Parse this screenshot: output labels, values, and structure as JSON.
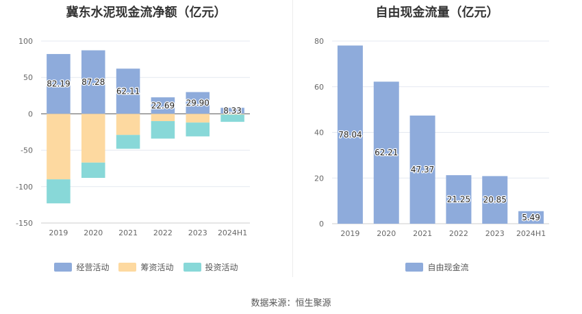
{
  "chart_data": [
    {
      "type": "bar",
      "stacked": true,
      "title": "冀东水泥现金流净额（亿元）",
      "categories": [
        "2019",
        "2020",
        "2021",
        "2022",
        "2023",
        "2024H1"
      ],
      "ylim": [
        -150,
        100
      ],
      "yticks": [
        100,
        50,
        0,
        -50,
        -100,
        -150
      ],
      "grid": true,
      "legend_position": "bottom",
      "series": [
        {
          "name": "经营活动",
          "color": "#8eabdb",
          "values": [
            82.19,
            87.28,
            62.11,
            22.69,
            29.9,
            8.33
          ],
          "labels": [
            "82.19",
            "87.28",
            "62.11",
            "22.69",
            "29.90",
            "8.33"
          ]
        },
        {
          "name": "筹资活动",
          "color": "#fdd9a0",
          "values": [
            -90,
            -67,
            -29,
            -10,
            -12,
            -1
          ]
        },
        {
          "name": "投资活动",
          "color": "#88d8d8",
          "values": [
            -33,
            -21,
            -19,
            -24,
            -19,
            -10
          ]
        }
      ]
    },
    {
      "type": "bar",
      "title": "自由现金流量（亿元）",
      "categories": [
        "2019",
        "2020",
        "2021",
        "2022",
        "2023",
        "2024H1"
      ],
      "ylim": [
        0,
        80
      ],
      "yticks": [
        80,
        60,
        40,
        20,
        0
      ],
      "grid": true,
      "legend_position": "bottom",
      "series": [
        {
          "name": "自由现金流",
          "color": "#8eabdb",
          "values": [
            78.04,
            62.21,
            47.37,
            21.25,
            20.85,
            5.49
          ],
          "labels": [
            "78.04",
            "62.21",
            "47.37",
            "21.25",
            "20.85",
            "5.49"
          ]
        }
      ]
    }
  ],
  "source": "数据来源：恒生聚源"
}
